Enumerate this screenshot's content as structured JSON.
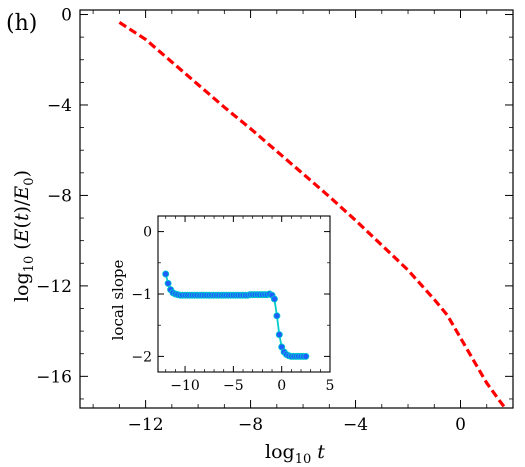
{
  "panel_label": "(h)",
  "chart_data": [
    {
      "type": "line",
      "xlabel": "log10 t",
      "ylabel": "log10(E(t)/E0)",
      "xlim": [
        -14.5,
        2.0
      ],
      "ylim": [
        -17.4,
        0.2
      ],
      "xticks": [
        -12,
        -8,
        -4,
        0
      ],
      "yticks": [
        0,
        -4,
        -8,
        -12,
        -16
      ],
      "x_tick_labels": [
        "−12",
        "−8",
        "−4",
        "0"
      ],
      "y_tick_labels": [
        "0",
        "−4",
        "−8",
        "−12",
        "−16"
      ],
      "series": [
        {
          "style": "dashed",
          "color": "#ff0000",
          "x": [
            -13.0,
            -12.0,
            -11.0,
            -10.0,
            -9.0,
            -8.0,
            -7.0,
            -6.0,
            -5.0,
            -4.0,
            -3.0,
            -2.0,
            -1.0,
            -0.5,
            0.0,
            0.5,
            1.0,
            1.5,
            1.7
          ],
          "y": [
            -0.35,
            -1.1,
            -2.1,
            -3.1,
            -4.1,
            -5.05,
            -6.05,
            -7.05,
            -8.05,
            -9.1,
            -10.2,
            -11.3,
            -12.6,
            -13.3,
            -14.3,
            -15.3,
            -16.3,
            -17.1,
            -17.4
          ]
        }
      ]
    },
    {
      "type": "scatter",
      "inset": true,
      "xlabel": "",
      "ylabel": "local slope",
      "xlim": [
        -12.8,
        5.0
      ],
      "ylim": [
        -2.25,
        0.25
      ],
      "xticks": [
        -10,
        -5,
        0,
        5
      ],
      "yticks": [
        0,
        -1,
        -2
      ],
      "x_tick_labels": [
        "−10",
        "−5",
        "0",
        "5"
      ],
      "y_tick_labels": [
        "0",
        "−1",
        "−2"
      ],
      "series": [
        {
          "line_color": "#00cccc",
          "marker_color": "#1e5fff",
          "x": [
            -12.0,
            -11.75,
            -11.5,
            -11.25,
            -11.0,
            -10.75,
            -10.5,
            -10.25,
            -10.0,
            -9.75,
            -9.5,
            -9.25,
            -9.0,
            -8.75,
            -8.5,
            -8.25,
            -8.0,
            -7.75,
            -7.5,
            -7.25,
            -7.0,
            -6.75,
            -6.5,
            -6.25,
            -6.0,
            -5.75,
            -5.5,
            -5.25,
            -5.0,
            -4.75,
            -4.5,
            -4.25,
            -4.0,
            -3.75,
            -3.5,
            -3.25,
            -3.0,
            -2.75,
            -2.5,
            -2.25,
            -2.0,
            -1.75,
            -1.5,
            -1.25,
            -1.0,
            -0.75,
            -0.5,
            -0.25,
            0.0,
            0.25,
            0.5,
            0.75,
            1.0,
            1.25,
            1.5,
            1.75,
            2.0,
            2.25,
            2.5
          ],
          "y": [
            -0.68,
            -0.83,
            -0.93,
            -0.98,
            -1.0,
            -1.01,
            -1.02,
            -1.02,
            -1.02,
            -1.02,
            -1.02,
            -1.02,
            -1.02,
            -1.02,
            -1.02,
            -1.02,
            -1.02,
            -1.02,
            -1.02,
            -1.02,
            -1.02,
            -1.02,
            -1.02,
            -1.02,
            -1.02,
            -1.02,
            -1.02,
            -1.02,
            -1.02,
            -1.02,
            -1.02,
            -1.02,
            -1.02,
            -1.02,
            -1.02,
            -1.01,
            -1.01,
            -1.01,
            -1.01,
            -1.01,
            -1.01,
            -1.01,
            -1.01,
            -1.0,
            -1.02,
            -1.08,
            -1.35,
            -1.65,
            -1.85,
            -1.93,
            -1.97,
            -1.99,
            -2.0,
            -2.0,
            -2.0,
            -2.0,
            -2.0,
            -2.0,
            -2.0
          ]
        }
      ]
    }
  ]
}
